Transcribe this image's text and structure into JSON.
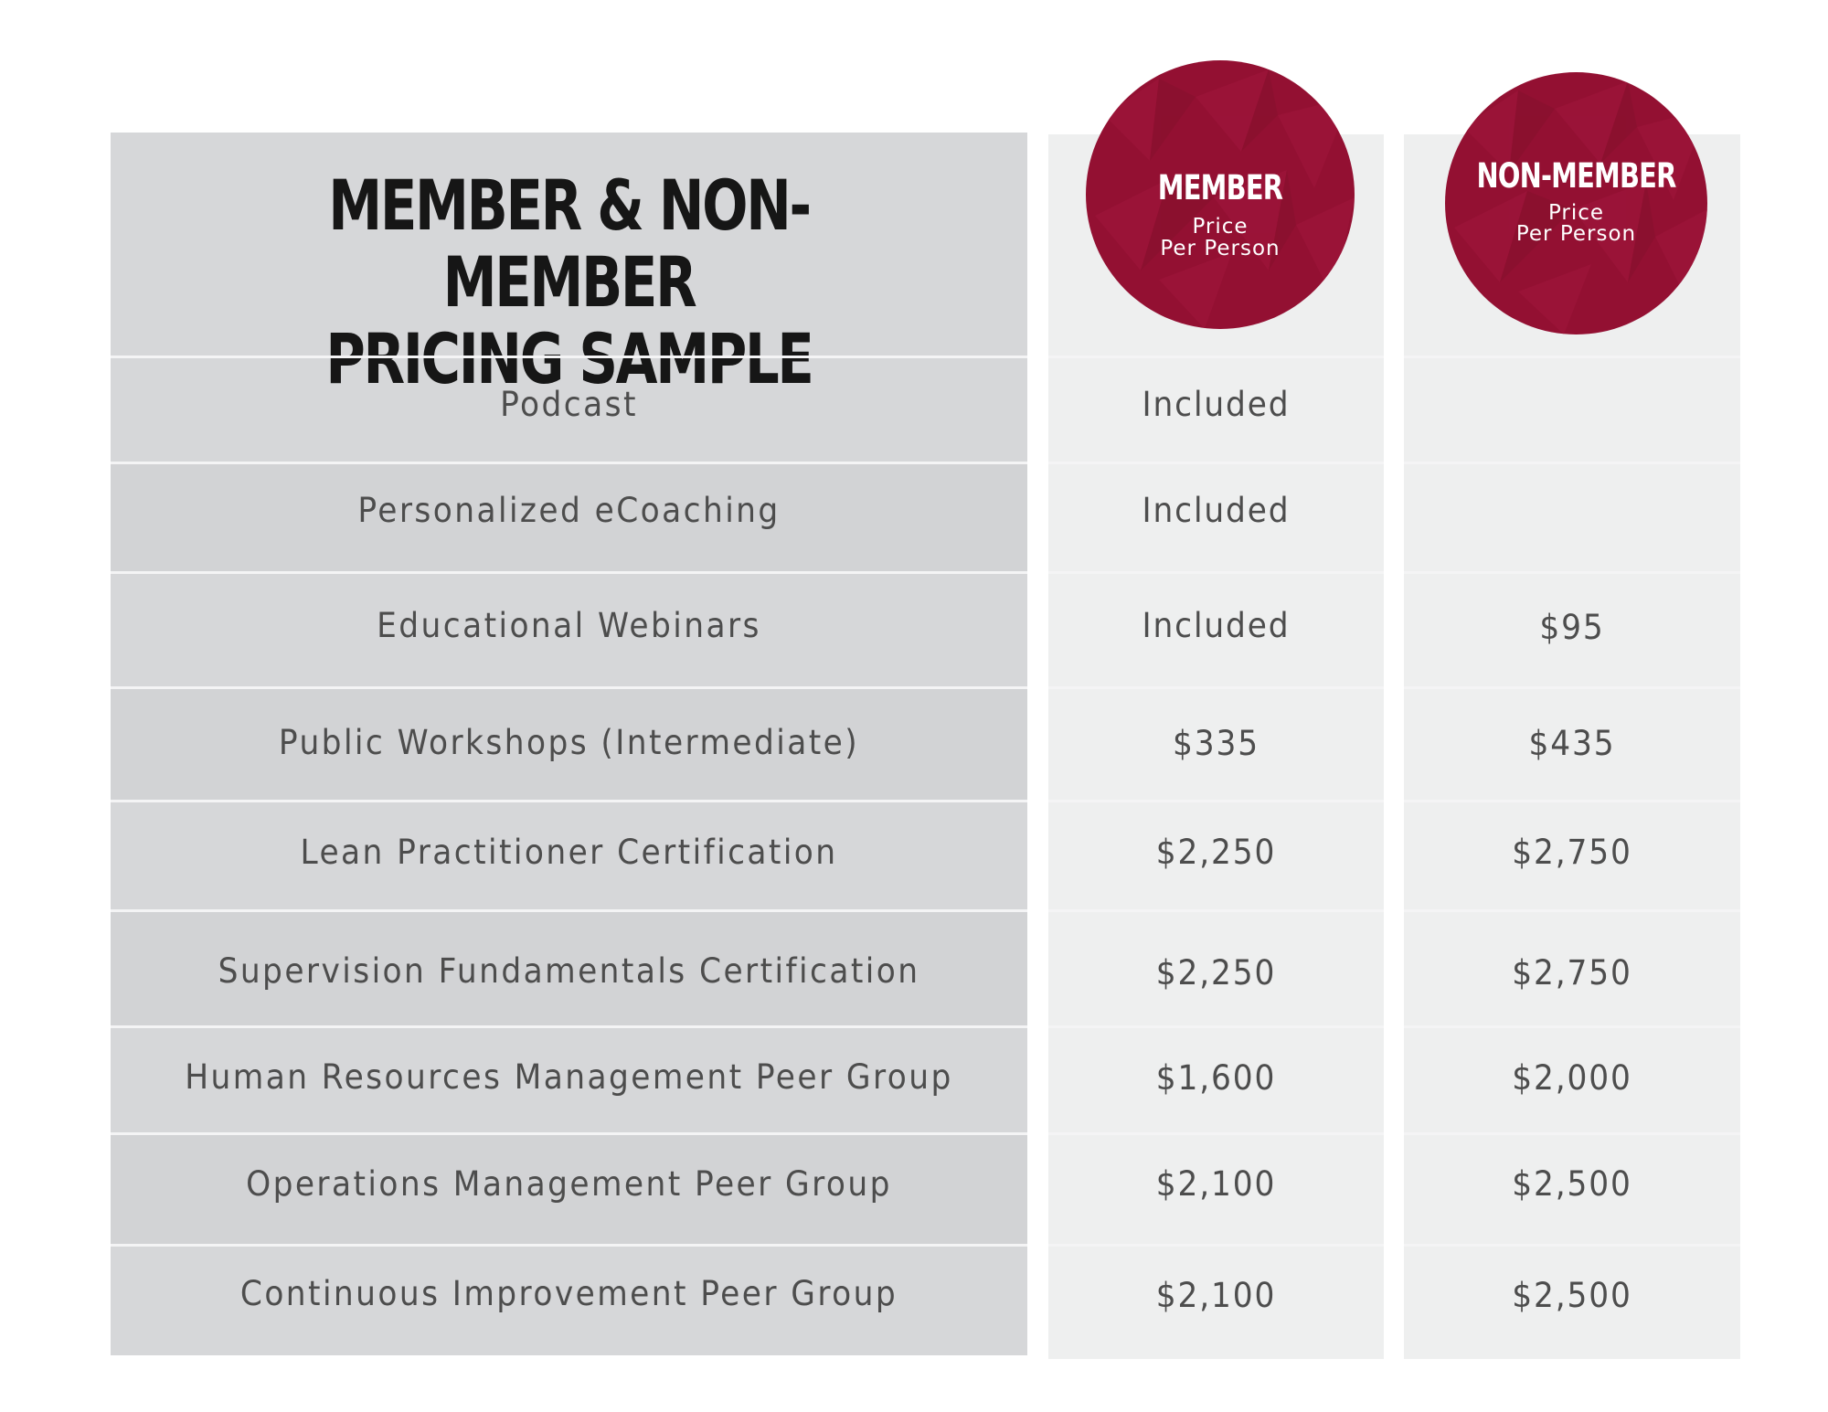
{
  "header": {
    "title_line1": "MEMBER & NON-MEMBER",
    "title_line2": "PRICING SAMPLE"
  },
  "columns": {
    "member": {
      "title": "MEMBER",
      "sub_line1": "Price",
      "sub_line2": "Per Person"
    },
    "nonmember": {
      "title": "NON-MEMBER",
      "sub_line1": "Price",
      "sub_line2": "Per Person"
    }
  },
  "colors": {
    "badge": "#931032",
    "label_panel": "#d6d7d9",
    "price_panel": "#eeefef",
    "text": "#4d4d4d",
    "title": "#161616"
  },
  "rows": [
    {
      "label": "Podcast",
      "member": "Included",
      "nonmember": ""
    },
    {
      "label": "Personalized eCoaching",
      "member": "Included",
      "nonmember": ""
    },
    {
      "label": "Educational Webinars",
      "member": "Included",
      "nonmember": "$95"
    },
    {
      "label": "Public Workshops (Intermediate)",
      "member": "$335",
      "nonmember": "$435"
    },
    {
      "label": "Lean Practitioner Certification",
      "member": "$2,250",
      "nonmember": "$2,750"
    },
    {
      "label": "Supervision Fundamentals Certification",
      "member": "$2,250",
      "nonmember": "$2,750"
    },
    {
      "label": "Human Resources Management Peer Group",
      "member": "$1,600",
      "nonmember": "$2,000"
    },
    {
      "label": "Operations Management Peer Group",
      "member": "$2,100",
      "nonmember": "$2,500"
    },
    {
      "label": "Continuous Improvement Peer Group",
      "member": "$2,100",
      "nonmember": "$2,500"
    }
  ]
}
